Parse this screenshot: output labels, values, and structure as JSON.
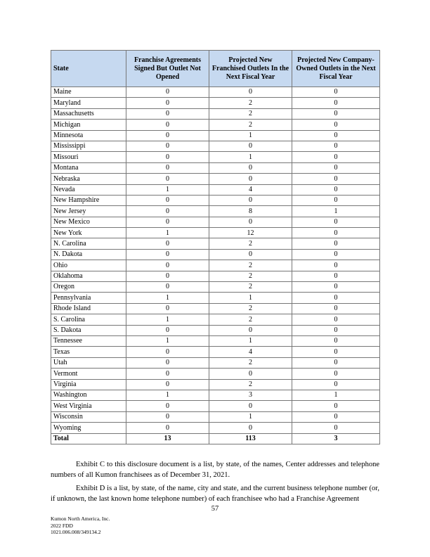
{
  "table": {
    "headers": [
      "State",
      "Franchise Agreements Signed But Outlet Not Opened",
      "Projected New Franchised Outlets In the Next Fiscal Year",
      "Projected New Company-Owned Outlets in the Next Fiscal Year"
    ],
    "rows": [
      [
        "Maine",
        "0",
        "0",
        "0"
      ],
      [
        "Maryland",
        "0",
        "2",
        "0"
      ],
      [
        "Massachusetts",
        "0",
        "2",
        "0"
      ],
      [
        "Michigan",
        "0",
        "2",
        "0"
      ],
      [
        "Minnesota",
        "0",
        "1",
        "0"
      ],
      [
        "Mississippi",
        "0",
        "0",
        "0"
      ],
      [
        "Missouri",
        "0",
        "1",
        "0"
      ],
      [
        "Montana",
        "0",
        "0",
        "0"
      ],
      [
        "Nebraska",
        "0",
        "0",
        "0"
      ],
      [
        "Nevada",
        "1",
        "4",
        "0"
      ],
      [
        "New Hampshire",
        "0",
        "0",
        "0"
      ],
      [
        "New Jersey",
        "0",
        "8",
        "1"
      ],
      [
        "New Mexico",
        "0",
        "0",
        "0"
      ],
      [
        "New York",
        "1",
        "12",
        "0"
      ],
      [
        "N. Carolina",
        "0",
        "2",
        "0"
      ],
      [
        "N. Dakota",
        "0",
        "0",
        "0"
      ],
      [
        "Ohio",
        "0",
        "2",
        "0"
      ],
      [
        "Oklahoma",
        "0",
        "2",
        "0"
      ],
      [
        "Oregon",
        "0",
        "2",
        "0"
      ],
      [
        "Pennsylvania",
        "1",
        "1",
        "0"
      ],
      [
        "Rhode Island",
        "0",
        "2",
        "0"
      ],
      [
        "S. Carolina",
        "1",
        "2",
        "0"
      ],
      [
        "S. Dakota",
        "0",
        "0",
        "0"
      ],
      [
        "Tennessee",
        "1",
        "1",
        "0"
      ],
      [
        "Texas",
        "0",
        "4",
        "0"
      ],
      [
        "Utah",
        "0",
        "2",
        "0"
      ],
      [
        "Vermont",
        "0",
        "0",
        "0"
      ],
      [
        "Virginia",
        "0",
        "2",
        "0"
      ],
      [
        "Washington",
        "1",
        "3",
        "1"
      ],
      [
        "West Virginia",
        "0",
        "0",
        "0"
      ],
      [
        "Wisconsin",
        "0",
        "1",
        "0"
      ],
      [
        "Wyoming",
        "0",
        "0",
        "0"
      ]
    ],
    "total": [
      "Total",
      "13",
      "113",
      "3"
    ]
  },
  "paragraphs": [
    "Exhibit C to this disclosure document is a list, by state, of the names, Center addresses and telephone numbers of all Kumon franchisees as of December 31, 2021.",
    "Exhibit D is a list, by state, of the name, city and state, and the current business telephone number (or, if unknown, the last known home telephone number) of each franchisee who had a Franchise Agreement"
  ],
  "page_number": "57",
  "footer": [
    "Kumon North America, Inc.",
    "2022  FDD",
    "1021.006.008/349134.2"
  ]
}
